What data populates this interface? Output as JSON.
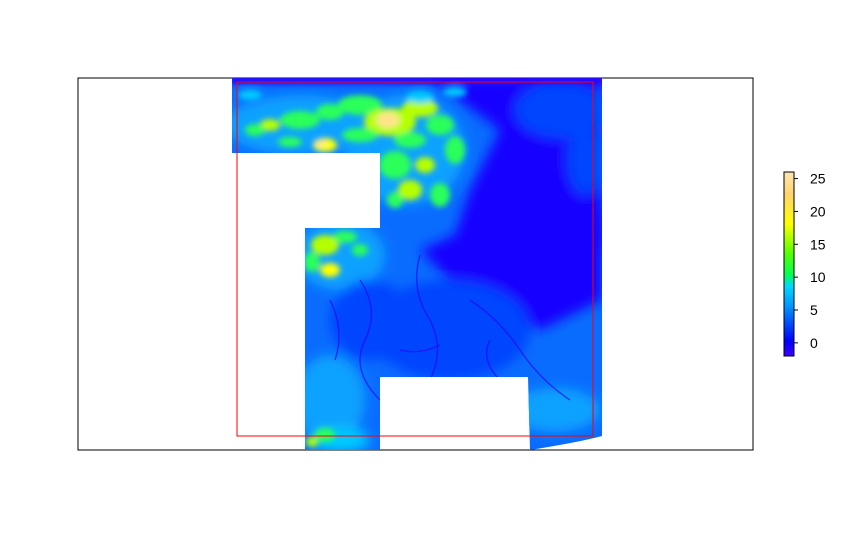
{
  "chart_data": {
    "type": "heatmap",
    "title": "",
    "xlabel": "",
    "ylabel": "",
    "legend_position": "right",
    "colorbar": {
      "ticks": [
        0,
        5,
        10,
        15,
        20,
        25
      ],
      "tick_labels": [
        "0",
        "5",
        "10",
        "15",
        "20",
        "25"
      ],
      "range": [
        -2,
        26
      ],
      "colors": [
        "#3d00ff",
        "#0000ff",
        "#0096ff",
        "#00d8ff",
        "#00ff55",
        "#57ff00",
        "#ffff00",
        "#ffd36e",
        "#ffe6b0"
      ]
    },
    "overlay_rectangle_color": "#ff0000",
    "value_colors": {
      "deep": "#2a00ff",
      "channel": "#1500ff",
      "low": "#0044ff",
      "mid_low": "#0a6cff",
      "mid": "#0aa2ff",
      "shallow": "#00ccff",
      "green": "#2bff5a",
      "lime": "#b6ff00",
      "yellow": "#ffff00",
      "peak": "#ffe48a"
    }
  }
}
